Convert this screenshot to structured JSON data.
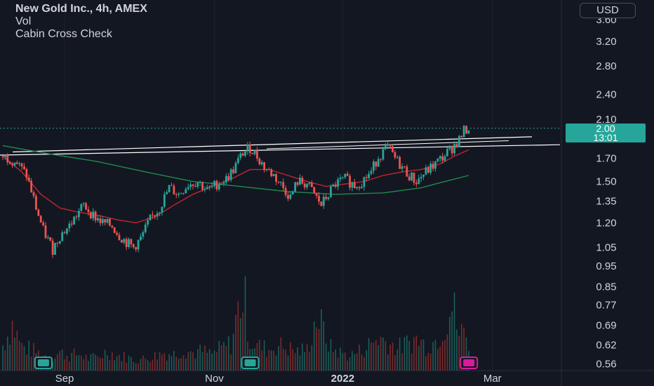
{
  "legend": {
    "title": "New Gold Inc., 4h, AMEX",
    "vol": "Vol",
    "indicator": "Cabin Cross Check"
  },
  "currency": "USD",
  "last_price": {
    "value": "2.00",
    "countdown": "13:01"
  },
  "colors": {
    "background": "#131722",
    "up": "#26a69a",
    "down": "#ef5350",
    "ma_fast": "#c2252e",
    "ma_slow": "#1f8a4c",
    "trendline": "#ffffff"
  },
  "chart_data": {
    "type": "candlestick",
    "y_scale": "log",
    "ylim": [
      0.54,
      4.0
    ],
    "y_ticks": [
      "3.60",
      "3.20",
      "2.80",
      "2.40",
      "2.10",
      "1.70",
      "1.50",
      "1.35",
      "1.20",
      "1.05",
      "0.95",
      "0.85",
      "0.77",
      "0.69",
      "0.62",
      "0.56"
    ],
    "x_ticks": [
      "Sep",
      "Nov",
      "2022",
      "Mar"
    ],
    "price_path": [
      [
        0,
        1.72
      ],
      [
        5,
        1.68
      ],
      [
        10,
        1.55
      ],
      [
        14,
        1.3
      ],
      [
        17,
        1.15
      ],
      [
        21,
        1.04
      ],
      [
        24,
        1.12
      ],
      [
        28,
        1.18
      ],
      [
        31,
        1.25
      ],
      [
        34,
        1.32
      ],
      [
        38,
        1.25
      ],
      [
        42,
        1.2
      ],
      [
        46,
        1.18
      ],
      [
        49,
        1.12
      ],
      [
        52,
        1.08
      ],
      [
        55,
        1.05
      ],
      [
        58,
        1.1
      ],
      [
        62,
        1.22
      ],
      [
        66,
        1.3
      ],
      [
        70,
        1.45
      ],
      [
        74,
        1.4
      ],
      [
        78,
        1.48
      ],
      [
        82,
        1.5
      ],
      [
        86,
        1.43
      ],
      [
        90,
        1.48
      ],
      [
        94,
        1.52
      ],
      [
        97,
        1.6
      ],
      [
        101,
        1.75
      ],
      [
        104,
        1.8
      ],
      [
        107,
        1.72
      ],
      [
        110,
        1.62
      ],
      [
        114,
        1.55
      ],
      [
        118,
        1.45
      ],
      [
        121,
        1.38
      ],
      [
        124,
        1.5
      ],
      [
        128,
        1.48
      ],
      [
        131,
        1.4
      ],
      [
        134,
        1.32
      ],
      [
        137,
        1.4
      ],
      [
        140,
        1.48
      ],
      [
        144,
        1.52
      ],
      [
        148,
        1.47
      ],
      [
        151,
        1.5
      ],
      [
        155,
        1.58
      ],
      [
        158,
        1.72
      ],
      [
        162,
        1.8
      ],
      [
        165,
        1.7
      ],
      [
        168,
        1.62
      ],
      [
        171,
        1.55
      ],
      [
        174,
        1.5
      ],
      [
        178,
        1.58
      ],
      [
        182,
        1.65
      ],
      [
        186,
        1.73
      ],
      [
        189,
        1.8
      ],
      [
        192,
        1.88
      ],
      [
        194,
        1.97
      ],
      [
        196,
        2.0
      ]
    ],
    "ma_fast": [
      [
        0,
        1.72
      ],
      [
        8,
        1.58
      ],
      [
        16,
        1.4
      ],
      [
        24,
        1.3
      ],
      [
        32,
        1.27
      ],
      [
        40,
        1.25
      ],
      [
        48,
        1.22
      ],
      [
        56,
        1.2
      ],
      [
        64,
        1.24
      ],
      [
        72,
        1.32
      ],
      [
        80,
        1.4
      ],
      [
        88,
        1.46
      ],
      [
        96,
        1.52
      ],
      [
        104,
        1.6
      ],
      [
        112,
        1.6
      ],
      [
        120,
        1.55
      ],
      [
        128,
        1.5
      ],
      [
        136,
        1.46
      ],
      [
        144,
        1.48
      ],
      [
        152,
        1.5
      ],
      [
        160,
        1.55
      ],
      [
        168,
        1.58
      ],
      [
        176,
        1.6
      ],
      [
        184,
        1.65
      ],
      [
        190,
        1.72
      ],
      [
        196,
        1.78
      ]
    ],
    "ma_slow": [
      [
        0,
        1.82
      ],
      [
        20,
        1.74
      ],
      [
        40,
        1.67
      ],
      [
        60,
        1.58
      ],
      [
        80,
        1.5
      ],
      [
        100,
        1.46
      ],
      [
        120,
        1.42
      ],
      [
        140,
        1.4
      ],
      [
        160,
        1.41
      ],
      [
        176,
        1.45
      ],
      [
        186,
        1.5
      ],
      [
        196,
        1.55
      ]
    ],
    "volume": [
      [
        0,
        0.34
      ],
      [
        4,
        0.62
      ],
      [
        8,
        0.32
      ],
      [
        12,
        0.28
      ],
      [
        16,
        0.22
      ],
      [
        20,
        0.18
      ],
      [
        24,
        0.24
      ],
      [
        28,
        0.2
      ],
      [
        32,
        0.22
      ],
      [
        36,
        0.16
      ],
      [
        40,
        0.18
      ],
      [
        44,
        0.26
      ],
      [
        48,
        0.2
      ],
      [
        52,
        0.18
      ],
      [
        56,
        0.14
      ],
      [
        60,
        0.16
      ],
      [
        64,
        0.2
      ],
      [
        68,
        0.24
      ],
      [
        72,
        0.22
      ],
      [
        76,
        0.28
      ],
      [
        80,
        0.24
      ],
      [
        84,
        0.26
      ],
      [
        88,
        0.22
      ],
      [
        92,
        0.3
      ],
      [
        96,
        0.36
      ],
      [
        100,
        0.95
      ],
      [
        102,
        0.9
      ],
      [
        104,
        0.4
      ],
      [
        108,
        0.32
      ],
      [
        112,
        0.28
      ],
      [
        116,
        0.34
      ],
      [
        120,
        0.3
      ],
      [
        124,
        0.26
      ],
      [
        128,
        0.28
      ],
      [
        132,
        0.72
      ],
      [
        134,
        0.6
      ],
      [
        138,
        0.3
      ],
      [
        142,
        0.24
      ],
      [
        146,
        0.2
      ],
      [
        150,
        0.26
      ],
      [
        154,
        0.34
      ],
      [
        158,
        0.44
      ],
      [
        162,
        0.38
      ],
      [
        166,
        0.3
      ],
      [
        170,
        0.36
      ],
      [
        174,
        0.42
      ],
      [
        178,
        0.34
      ],
      [
        182,
        0.4
      ],
      [
        186,
        0.62
      ],
      [
        188,
        0.86
      ],
      [
        190,
        0.78
      ],
      [
        192,
        0.48
      ],
      [
        194,
        0.52
      ],
      [
        196,
        0.4
      ]
    ]
  }
}
